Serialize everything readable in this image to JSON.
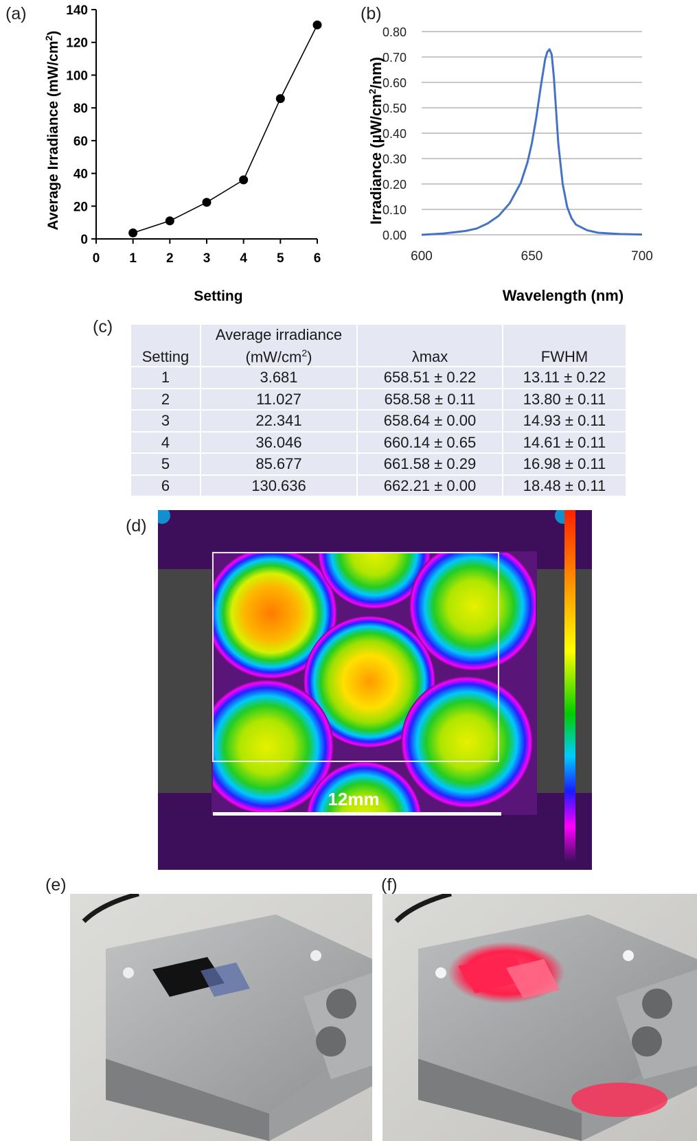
{
  "panels": {
    "a": "(a)",
    "b": "(b)",
    "c": "(c)",
    "d": "(d)",
    "e": "(e)",
    "f": "(f)"
  },
  "chart_a": {
    "type": "line",
    "xlabel": "Setting",
    "ylabel": "Average Irradiance (mW/cm",
    "ylabel_sup": "2",
    "ylabel_close": ")",
    "xlim": [
      0,
      6
    ],
    "ylim": [
      0,
      140
    ],
    "xticks": [
      0,
      1,
      2,
      3,
      4,
      5,
      6
    ],
    "yticks": [
      0,
      20,
      40,
      60,
      80,
      100,
      120,
      140
    ],
    "x": [
      1,
      2,
      3,
      4,
      5,
      6
    ],
    "y": [
      3.681,
      11.027,
      22.341,
      36.046,
      85.677,
      130.636
    ],
    "marker": "filled-circle",
    "color": "#000000"
  },
  "chart_b": {
    "type": "line",
    "xlabel": "Wavelength (nm)",
    "ylabel": "Irradiance (µW/cm",
    "ylabel_sup": "2",
    "ylabel_close": "/nm)",
    "xlim": [
      600,
      700
    ],
    "ylim": [
      0,
      0.8
    ],
    "xticks": [
      "600",
      "650",
      "700"
    ],
    "yticks": [
      "0.00",
      "0.10",
      "0.20",
      "0.30",
      "0.40",
      "0.50",
      "0.60",
      "0.70",
      "0.80"
    ],
    "grid": "horizontal",
    "color": "#4472c4",
    "series": [
      {
        "x": [
          600,
          610,
          620,
          625,
          630,
          635,
          640,
          645,
          648,
          650,
          652,
          654,
          656,
          657,
          658,
          659,
          660,
          661,
          662,
          664,
          666,
          668,
          670,
          675,
          680,
          690,
          700
        ],
        "y": [
          0.0,
          0.005,
          0.015,
          0.025,
          0.045,
          0.075,
          0.125,
          0.205,
          0.285,
          0.36,
          0.46,
          0.58,
          0.69,
          0.72,
          0.73,
          0.71,
          0.62,
          0.49,
          0.36,
          0.2,
          0.11,
          0.065,
          0.04,
          0.018,
          0.008,
          0.003,
          0.001
        ]
      }
    ]
  },
  "table_c": {
    "headers": [
      "Setting",
      "Average irradiance",
      "(mW/cm",
      "2",
      ")",
      "λmax",
      "FWHM"
    ],
    "rows": [
      [
        "1",
        "3.681",
        "658.51 ± 0.22",
        "13.11 ± 0.22"
      ],
      [
        "2",
        "11.027",
        "658.58 ± 0.11",
        "13.80 ± 0.11"
      ],
      [
        "3",
        "22.341",
        "658.64 ± 0.00",
        "14.93 ± 0.11"
      ],
      [
        "4",
        "36.046",
        "660.14 ± 0.65",
        "14.61 ± 0.11"
      ],
      [
        "5",
        "85.677",
        "661.58 ± 0.29",
        "16.98 ± 0.11"
      ],
      [
        "6",
        "130.636",
        "662.21 ± 0.00",
        "18.48 ± 0.11"
      ]
    ]
  },
  "heatmap_d": {
    "scale_label": "12mm",
    "background": "#3d0f5a",
    "colorbar": [
      "#ff2200",
      "#ff8800",
      "#ffff00",
      "#00cc00",
      "#00ccff",
      "#1a1aff",
      "#ff00ff",
      "#3d0f5a"
    ]
  }
}
